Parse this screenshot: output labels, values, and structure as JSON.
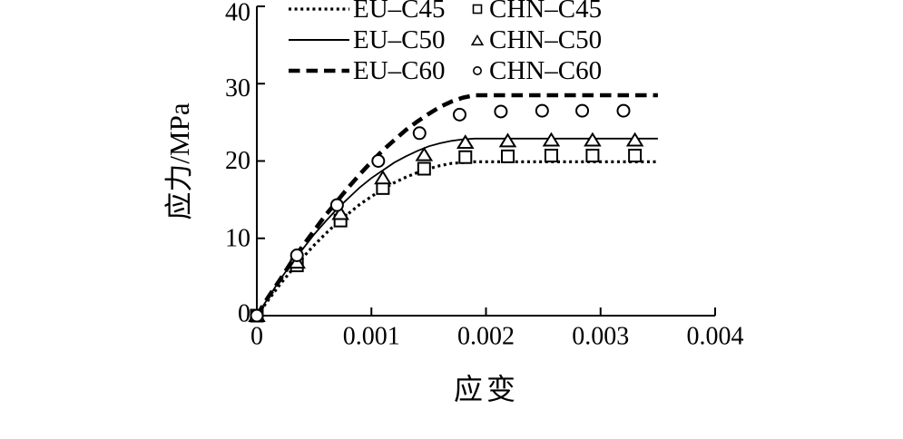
{
  "figure": {
    "background": "#ffffff",
    "ink_color": "#000000"
  },
  "chart_data": {
    "type": "line",
    "title": "",
    "xlabel": "应变",
    "ylabel": "应力/MPa",
    "xlim": [
      0,
      0.004
    ],
    "ylim": [
      0,
      40
    ],
    "x_ticks": [
      0,
      0.001,
      0.002,
      0.003,
      0.004
    ],
    "x_tick_labels": [
      "0",
      "0.001",
      "0.002",
      "0.003",
      "0.004"
    ],
    "y_ticks": [
      0,
      10,
      20,
      30,
      40
    ],
    "y_tick_labels": [
      "0",
      "10",
      "20",
      "30",
      "40"
    ],
    "grid": false,
    "legend_position": "top-inside",
    "series": [
      {
        "name": "EU–C45",
        "type": "line",
        "style": "dotted",
        "x": [
          0,
          0.0001,
          0.0002,
          0.0003,
          0.0004,
          0.0005,
          0.0006,
          0.0007,
          0.0008,
          0.0009,
          0.001,
          0.0011,
          0.0012,
          0.0013,
          0.0014,
          0.0015,
          0.0016,
          0.0017,
          0.0018,
          0.0019,
          0.0035
        ],
        "y": [
          0,
          2.0,
          4.0,
          5.8,
          7.5,
          9.1,
          10.6,
          12.0,
          13.2,
          14.4,
          15.4,
          16.4,
          17.2,
          17.9,
          18.5,
          19.0,
          19.4,
          19.7,
          19.8,
          19.9,
          19.9
        ]
      },
      {
        "name": "EU–C50",
        "type": "line",
        "style": "solid",
        "x": [
          0,
          0.0001,
          0.0002,
          0.0003,
          0.0004,
          0.0005,
          0.0006,
          0.0007,
          0.0008,
          0.0009,
          0.001,
          0.0011,
          0.0012,
          0.0013,
          0.0014,
          0.0015,
          0.0016,
          0.0017,
          0.0018,
          0.0019,
          0.0035
        ],
        "y": [
          0,
          2.3,
          4.6,
          6.7,
          8.6,
          10.5,
          12.2,
          13.8,
          15.2,
          16.6,
          17.8,
          18.8,
          19.8,
          20.6,
          21.3,
          21.9,
          22.3,
          22.6,
          22.8,
          22.9,
          22.9
        ]
      },
      {
        "name": "EU–C60",
        "type": "line",
        "style": "dashed",
        "x": [
          0,
          0.0001,
          0.0002,
          0.0003,
          0.0004,
          0.0005,
          0.0006,
          0.0007,
          0.0008,
          0.0009,
          0.001,
          0.0011,
          0.0012,
          0.0013,
          0.0014,
          0.0015,
          0.0016,
          0.0017,
          0.0018,
          0.0019,
          0.0035
        ],
        "y": [
          0,
          2.4,
          4.6,
          6.9,
          9.0,
          11.0,
          13.0,
          14.8,
          16.6,
          18.3,
          19.9,
          21.4,
          22.7,
          24.0,
          25.1,
          26.1,
          27.0,
          27.7,
          28.2,
          28.5,
          28.5
        ]
      },
      {
        "name": "CHN–C45",
        "type": "scatter",
        "marker": "square",
        "x": [
          0,
          0.00035,
          0.00073,
          0.0011,
          0.00146,
          0.00182,
          0.00219,
          0.00257,
          0.00293,
          0.0033
        ],
        "y": [
          0,
          6.5,
          12.3,
          16.5,
          19.0,
          20.5,
          20.6,
          20.7,
          20.7,
          20.7
        ]
      },
      {
        "name": "CHN–C50",
        "type": "scatter",
        "marker": "triangle",
        "x": [
          0,
          0.00035,
          0.00073,
          0.0011,
          0.00146,
          0.00182,
          0.00219,
          0.00257,
          0.00293,
          0.0033
        ],
        "y": [
          0,
          6.9,
          13.2,
          17.8,
          20.8,
          22.4,
          22.6,
          22.7,
          22.7,
          22.7
        ]
      },
      {
        "name": "CHN–C60",
        "type": "scatter",
        "marker": "circle",
        "x": [
          0,
          0.00035,
          0.0007,
          0.00106,
          0.00142,
          0.00177,
          0.00213,
          0.00249,
          0.00284,
          0.0032
        ],
        "y": [
          0,
          7.8,
          14.3,
          20.0,
          23.6,
          26.0,
          26.4,
          26.5,
          26.5,
          26.5
        ]
      }
    ]
  }
}
